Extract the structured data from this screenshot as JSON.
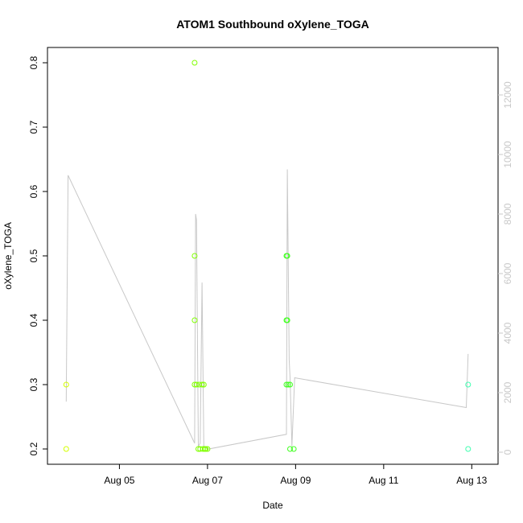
{
  "chart_data": {
    "type": "scatter",
    "title": "ATOM1 Southbound oXylene_TOGA",
    "xlabel": "Date",
    "ylabel": "oXylene_TOGA",
    "x_ticks": [
      "Aug 05",
      "Aug 07",
      "Aug 09",
      "Aug 11",
      "Aug 13"
    ],
    "y_ticks": [
      "0.2",
      "0.3",
      "0.4",
      "0.5",
      "0.6",
      "0.7",
      "0.8"
    ],
    "y2_ticks": [
      "0",
      "2000",
      "4000",
      "6000",
      "8000",
      "10000",
      "12000"
    ],
    "ylim": [
      0.2,
      0.8
    ],
    "y2lim": [
      0,
      12000
    ],
    "xlim": [
      "2016-08-03T18:00",
      "2016-08-13T06:00"
    ],
    "series": [
      {
        "type": "scatter",
        "points": [
          {
            "x": "2016-08-03T19:00",
            "y": 0.3,
            "color": "#d4ff00"
          },
          {
            "x": "2016-08-03T19:00",
            "y": 0.2,
            "color": "#d4ff00"
          },
          {
            "x": "2016-08-06T17:00",
            "y": 0.8,
            "color": "#80ff00"
          },
          {
            "x": "2016-08-06T17:00",
            "y": 0.5,
            "color": "#80ff00"
          },
          {
            "x": "2016-08-06T17:00",
            "y": 0.4,
            "color": "#80ff00"
          },
          {
            "x": "2016-08-06T17:00",
            "y": 0.3,
            "color": "#80ff00"
          },
          {
            "x": "2016-08-06T18:00",
            "y": 0.3,
            "color": "#80ff00"
          },
          {
            "x": "2016-08-06T19:00",
            "y": 0.2,
            "color": "#80ff00"
          },
          {
            "x": "2016-08-06T19:30",
            "y": 0.3,
            "color": "#80ff00"
          },
          {
            "x": "2016-08-06T20:00",
            "y": 0.2,
            "color": "#80ff00"
          },
          {
            "x": "2016-08-06T21:00",
            "y": 0.3,
            "color": "#80ff00"
          },
          {
            "x": "2016-08-06T21:30",
            "y": 0.2,
            "color": "#80ff00"
          },
          {
            "x": "2016-08-06T22:00",
            "y": 0.3,
            "color": "#80ff00"
          },
          {
            "x": "2016-08-06T22:30",
            "y": 0.2,
            "color": "#80ff00"
          },
          {
            "x": "2016-08-06T23:00",
            "y": 0.2,
            "color": "#80ff00"
          },
          {
            "x": "2016-08-07T00:00",
            "y": 0.2,
            "color": "#80ff00"
          },
          {
            "x": "2016-08-08T19:00",
            "y": 0.5,
            "color": "#40ff20"
          },
          {
            "x": "2016-08-08T19:30",
            "y": 0.5,
            "color": "#40ff20"
          },
          {
            "x": "2016-08-08T19:00",
            "y": 0.4,
            "color": "#40ff20"
          },
          {
            "x": "2016-08-08T19:30",
            "y": 0.4,
            "color": "#40ff20"
          },
          {
            "x": "2016-08-08T19:00",
            "y": 0.3,
            "color": "#40ff20"
          },
          {
            "x": "2016-08-08T20:00",
            "y": 0.3,
            "color": "#40ff20"
          },
          {
            "x": "2016-08-08T21:00",
            "y": 0.3,
            "color": "#40ff20"
          },
          {
            "x": "2016-08-08T21:00",
            "y": 0.2,
            "color": "#40ff20"
          },
          {
            "x": "2016-08-08T23:00",
            "y": 0.2,
            "color": "#40ff20"
          },
          {
            "x": "2016-08-12T22:00",
            "y": 0.3,
            "color": "#40ffb0"
          },
          {
            "x": "2016-08-12T22:00",
            "y": 0.2,
            "color": "#40ffb0"
          }
        ]
      },
      {
        "type": "line",
        "axis": "right",
        "color": "#c8c8c8",
        "points": [
          {
            "x": "2016-08-03T19:00",
            "y": 1700
          },
          {
            "x": "2016-08-03T20:00",
            "y": 9300
          },
          {
            "x": "2016-08-06T17:00",
            "y": 300
          },
          {
            "x": "2016-08-06T17:30",
            "y": 8000
          },
          {
            "x": "2016-08-06T18:00",
            "y": 7800
          },
          {
            "x": "2016-08-06T19:00",
            "y": 200
          },
          {
            "x": "2016-08-06T20:00",
            "y": 300
          },
          {
            "x": "2016-08-06T21:00",
            "y": 5700
          },
          {
            "x": "2016-08-06T22:00",
            "y": 200
          },
          {
            "x": "2016-08-07T00:00",
            "y": 100
          },
          {
            "x": "2016-08-08T19:00",
            "y": 600
          },
          {
            "x": "2016-08-08T19:30",
            "y": 9500
          },
          {
            "x": "2016-08-08T20:30",
            "y": 3100
          },
          {
            "x": "2016-08-08T21:00",
            "y": 2500
          },
          {
            "x": "2016-08-08T22:00",
            "y": 200
          },
          {
            "x": "2016-08-08T23:30",
            "y": 2500
          },
          {
            "x": "2016-08-12T21:00",
            "y": 1500
          },
          {
            "x": "2016-08-12T22:00",
            "y": 3300
          }
        ]
      }
    ]
  }
}
